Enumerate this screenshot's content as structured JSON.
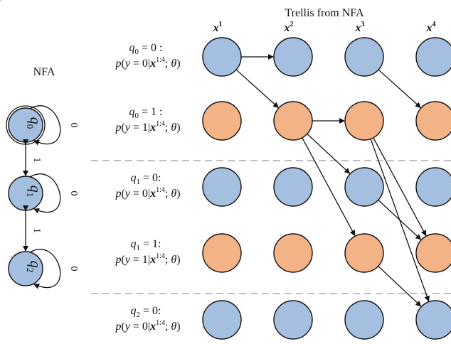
{
  "trellis_title": "Trellis from NFA",
  "nfa_title": "NFA",
  "columns": [
    {
      "var": "x",
      "sup": "1"
    },
    {
      "var": "x",
      "sup": "2"
    },
    {
      "var": "x",
      "sup": "3"
    },
    {
      "var": "x",
      "sup": "4"
    }
  ],
  "rows": [
    {
      "state": "0",
      "eq": " = 0 :",
      "y": "0",
      "color": "#a4bfe0"
    },
    {
      "state": "0",
      "eq": " = 1 :",
      "y": "1",
      "color": "#f4b287"
    },
    {
      "state": "1",
      "eq": " = 0:",
      "y": "0",
      "color": "#a4bfe0"
    },
    {
      "state": "1",
      "eq": " = 1:",
      "y": "1",
      "color": "#f4b287"
    },
    {
      "state": "2",
      "eq": " = 0:",
      "y": "0",
      "color": "#a4bfe0"
    }
  ],
  "prob": {
    "p": "p",
    "open": "(",
    "y": "y",
    "eq": " = ",
    "given": "|",
    "x": "x",
    "sup": "1:4",
    "sep": "; ",
    "theta": "θ",
    "close": ")"
  },
  "nfa_states": [
    {
      "q": "q",
      "sub": "0",
      "self_label": "0"
    },
    {
      "q": "q",
      "sub": "1",
      "self_label": "0"
    },
    {
      "q": "q",
      "sub": "2",
      "self_label": "0"
    }
  ],
  "nfa_transitions": [
    {
      "from": 0,
      "to": 1,
      "label": "1"
    },
    {
      "from": 1,
      "to": 2,
      "label": "1"
    }
  ],
  "colors": {
    "blue": "#a4bfe0",
    "orange": "#f4b287",
    "stroke": "#111111",
    "dashed": "#bfbfbf",
    "nfa_fill": "#a4bfe0"
  },
  "trellis_edges": [
    [
      0,
      0,
      1,
      0
    ],
    [
      0,
      0,
      1,
      1
    ],
    [
      1,
      1,
      2,
      1
    ],
    [
      1,
      1,
      2,
      2
    ],
    [
      1,
      1,
      2,
      3
    ],
    [
      2,
      0,
      3,
      1
    ],
    [
      2,
      1,
      3,
      3
    ],
    [
      2,
      1,
      3,
      4
    ],
    [
      2,
      2,
      3,
      3
    ],
    [
      2,
      3,
      3,
      4
    ],
    [
      3,
      1,
      4,
      3
    ],
    [
      3,
      3,
      4,
      3
    ],
    [
      3,
      3,
      4,
      4
    ],
    [
      3,
      4,
      4,
      4
    ]
  ]
}
